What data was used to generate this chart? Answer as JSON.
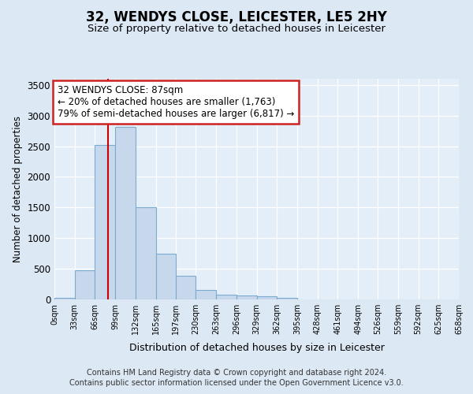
{
  "title": "32, WENDYS CLOSE, LEICESTER, LE5 2HY",
  "subtitle": "Size of property relative to detached houses in Leicester",
  "xlabel": "Distribution of detached houses by size in Leicester",
  "ylabel": "Number of detached properties",
  "bar_color": "#c8d8ec",
  "bar_edge_color": "#7aaace",
  "bar_heights": [
    20,
    480,
    2520,
    2820,
    1500,
    745,
    390,
    155,
    75,
    65,
    50,
    30,
    0,
    0,
    0,
    0,
    0,
    0,
    0,
    0
  ],
  "bin_edges": [
    0,
    33,
    66,
    99,
    132,
    165,
    197,
    230,
    263,
    296,
    329,
    362,
    395,
    428,
    461,
    494,
    526,
    559,
    592,
    625,
    658
  ],
  "tick_labels": [
    "0sqm",
    "33sqm",
    "66sqm",
    "99sqm",
    "132sqm",
    "165sqm",
    "197sqm",
    "230sqm",
    "263sqm",
    "296sqm",
    "329sqm",
    "362sqm",
    "395sqm",
    "428sqm",
    "461sqm",
    "494sqm",
    "526sqm",
    "559sqm",
    "592sqm",
    "625sqm",
    "658sqm"
  ],
  "property_size": 87,
  "red_line_color": "#cc0000",
  "ylim": [
    0,
    3600
  ],
  "yticks": [
    0,
    500,
    1000,
    1500,
    2000,
    2500,
    3000,
    3500
  ],
  "annotation_line1": "32 WENDYS CLOSE: 87sqm",
  "annotation_line2": "← 20% of detached houses are smaller (1,763)",
  "annotation_line3": "79% of semi-detached houses are larger (6,817) →",
  "annotation_border_color": "#cc2222",
  "footer_line1": "Contains HM Land Registry data © Crown copyright and database right 2024.",
  "footer_line2": "Contains public sector information licensed under the Open Government Licence v3.0.",
  "fig_bg_color": "#dce8f4",
  "plot_bg_color": "#e4eef8"
}
